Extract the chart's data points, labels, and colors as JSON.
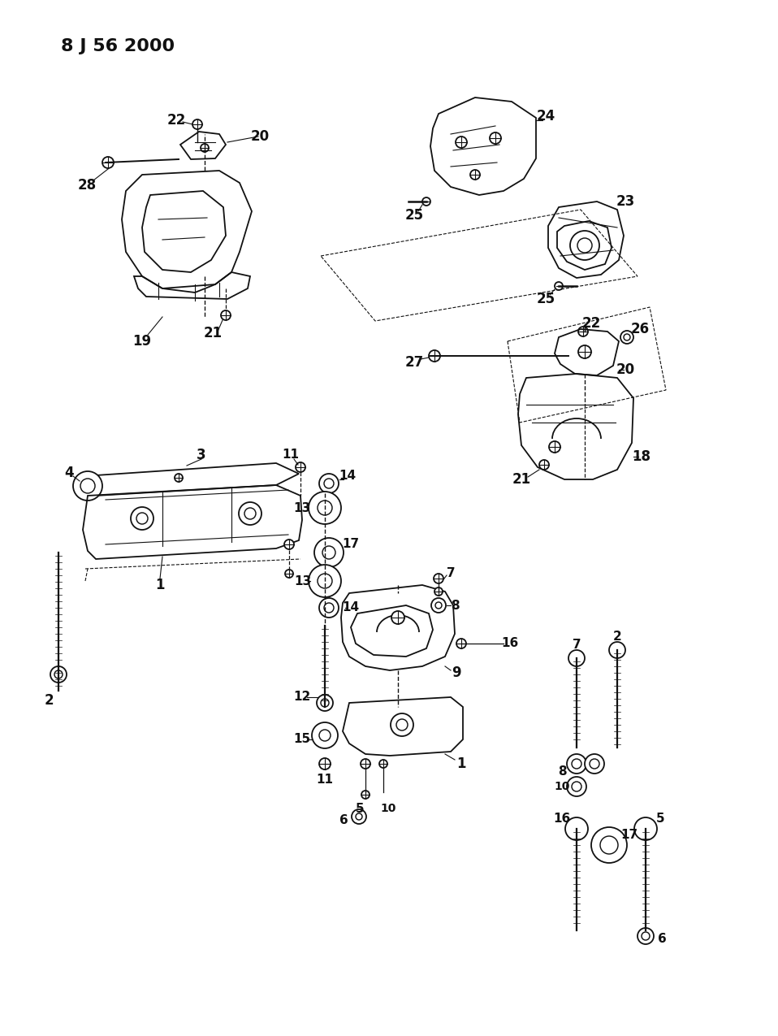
{
  "title": "8 J 56 2000",
  "bg": "#ffffff",
  "lc": "#111111",
  "fig_w": 9.58,
  "fig_h": 12.75,
  "dpi": 100
}
